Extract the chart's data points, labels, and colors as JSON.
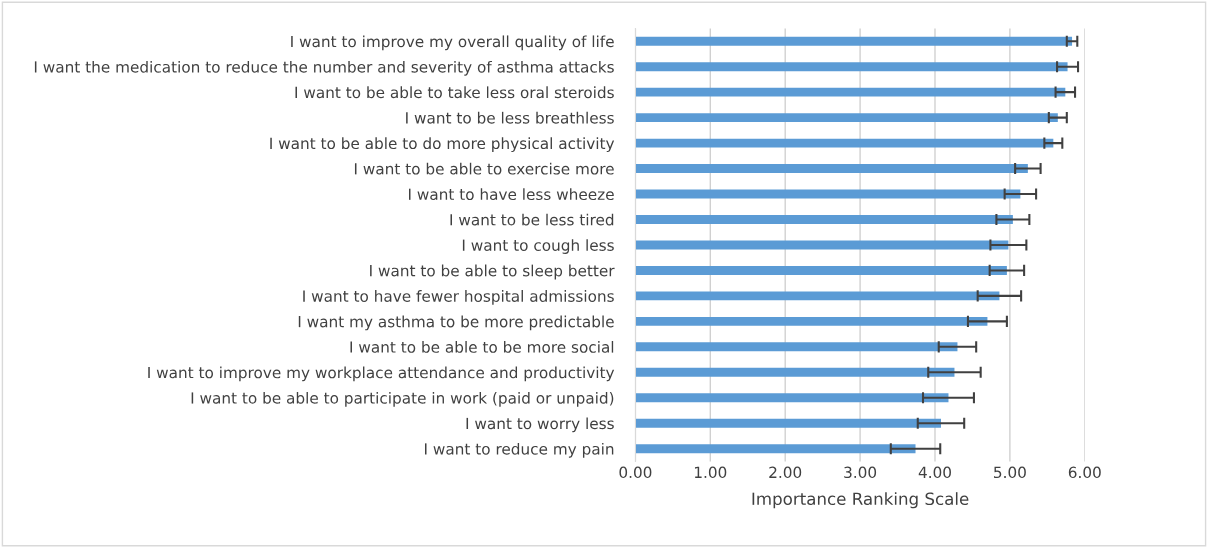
{
  "chart_data": {
    "type": "bar",
    "orientation": "horizontal",
    "xlabel": "Importance Ranking Scale",
    "categories": [
      "I want to improve my overall quality of life",
      "I want the medication to reduce the number and severity of asthma attacks",
      "I want to be able to take less oral steroids",
      "I want to be less breathless",
      "I want to be able to do more physical activity",
      "I want to be able to exercise more",
      "I want to have less wheeze",
      "I want to be less tired",
      "I want to cough less",
      "I want to be able to sleep better",
      "I want to have fewer hospital admissions",
      "I want my asthma to be more predictable",
      "I want to be able to be more social",
      "I want to improve my workplace attendance and productivity",
      "I want to be able to participate in work (paid or unpaid)",
      "I want to worry less",
      "I want to reduce my pain"
    ],
    "values": [
      5.83,
      5.77,
      5.74,
      5.64,
      5.58,
      5.24,
      5.14,
      5.04,
      4.98,
      4.96,
      4.86,
      4.7,
      4.3,
      4.26,
      4.18,
      4.08,
      3.74
    ],
    "errors": [
      0.07,
      0.14,
      0.13,
      0.12,
      0.12,
      0.17,
      0.21,
      0.22,
      0.24,
      0.23,
      0.29,
      0.26,
      0.25,
      0.35,
      0.34,
      0.31,
      0.33
    ],
    "color": "#5b9bd5",
    "xlim": [
      0,
      6
    ],
    "xticks": [
      {
        "value": 0,
        "label": "0.00"
      },
      {
        "value": 1,
        "label": "1.00"
      },
      {
        "value": 2,
        "label": "2.00"
      },
      {
        "value": 3,
        "label": "3.00"
      },
      {
        "value": 4,
        "label": "4.00"
      },
      {
        "value": 5,
        "label": "5.00"
      },
      {
        "value": 6,
        "label": "6.00"
      }
    ],
    "grid": "x"
  }
}
